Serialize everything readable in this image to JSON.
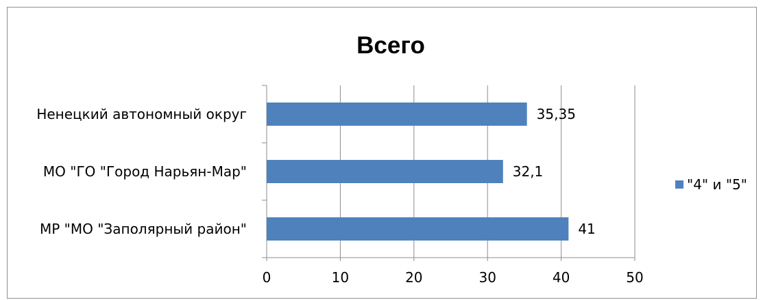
{
  "chart_data": {
    "type": "bar",
    "orientation": "horizontal",
    "title": "Всего",
    "categories": [
      "Ненецкий автономный округ",
      "МО \"ГО \"Город Нарьян-Мар\"",
      "МР \"МО \"Заполярный район\""
    ],
    "series": [
      {
        "name": "\"4\" и \"5\"",
        "values": [
          35.35,
          32.1,
          41
        ],
        "data_labels": [
          "35,35",
          "32,1",
          "41"
        ],
        "color": "#4F81BD"
      }
    ],
    "xlim": [
      0,
      50
    ],
    "x_ticks": [
      0,
      10,
      20,
      30,
      40,
      50
    ],
    "grid": "vertical",
    "legend_position": "right"
  }
}
